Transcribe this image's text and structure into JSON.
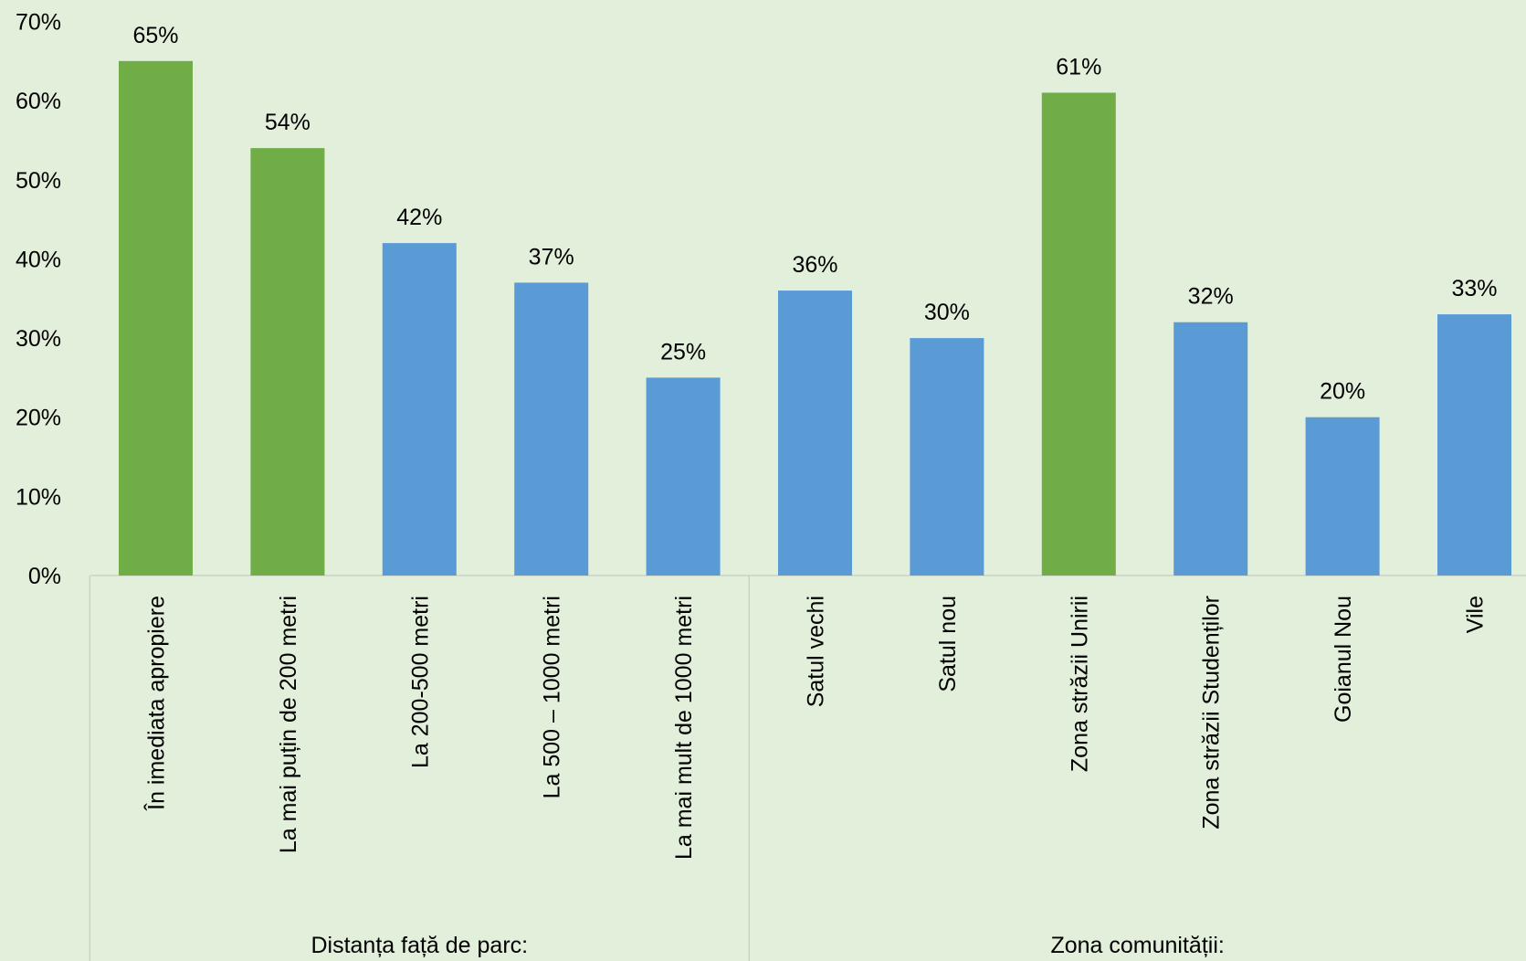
{
  "chart_data": {
    "type": "bar",
    "groups": [
      {
        "name": "Distanța față de parc:",
        "categories": [
          "În imediata apropiere",
          "La mai puțin de 200 metri",
          "La 200-500 metri",
          "La 500 – 1000 metri",
          "La mai mult de 1000 metri"
        ],
        "values": [
          65,
          54,
          42,
          37,
          25
        ],
        "value_labels": [
          "65%",
          "54%",
          "42%",
          "37%",
          "25%"
        ],
        "colors": [
          "#70ad47",
          "#70ad47",
          "#5b9bd5",
          "#5b9bd5",
          "#5b9bd5"
        ]
      },
      {
        "name": "Zona comunității:",
        "categories": [
          "Satul vechi",
          "Satul nou",
          "Zona străzii Unirii",
          "Zona străzii Studenților",
          "Goianul Nou",
          "Vile"
        ],
        "values": [
          36,
          30,
          61,
          32,
          20,
          33
        ],
        "value_labels": [
          "36%",
          "30%",
          "61%",
          "32%",
          "20%",
          "33%"
        ],
        "colors": [
          "#5b9bd5",
          "#5b9bd5",
          "#70ad47",
          "#5b9bd5",
          "#5b9bd5",
          "#5b9bd5"
        ]
      }
    ],
    "ylim": [
      0,
      70
    ],
    "yticks": [
      {
        "value": 0,
        "label": "0%"
      },
      {
        "value": 10,
        "label": "10%"
      },
      {
        "value": 20,
        "label": "20%"
      },
      {
        "value": 30,
        "label": "30%"
      },
      {
        "value": 40,
        "label": "40%"
      },
      {
        "value": 50,
        "label": "50%"
      },
      {
        "value": 60,
        "label": "60%"
      },
      {
        "value": 70,
        "label": "70%"
      }
    ],
    "grid": false
  }
}
